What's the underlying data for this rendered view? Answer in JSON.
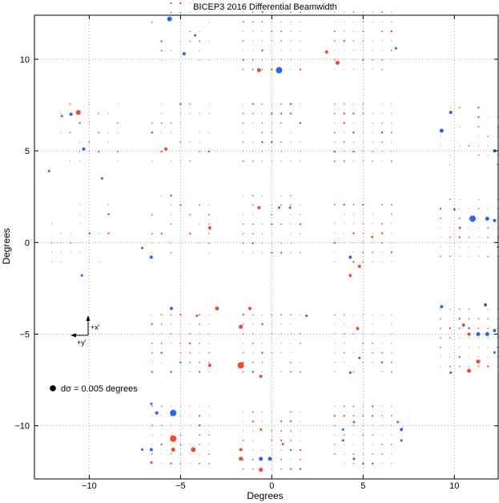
{
  "chart_data": {
    "type": "scatter",
    "title": "BICEP3 2016 Differential Beamwidth",
    "xlabel": "Degrees",
    "ylabel": "Degrees",
    "xlim": [
      -13,
      12.4
    ],
    "ylim": [
      -12.9,
      12.4
    ],
    "xticks": [
      -10,
      -5,
      0,
      5,
      10
    ],
    "yticks": [
      -10,
      -5,
      0,
      5,
      10
    ],
    "grid": true,
    "colors": {
      "positive": "#f04a2a",
      "negative": "#2a64f0"
    },
    "scale": {
      "marker_value": 0.005,
      "text": "dσ = 0.005 degrees"
    },
    "orientation": {
      "x_label": "+x'",
      "y_label": "+y'"
    },
    "tile_grid": {
      "spacing": 0.52,
      "n": 7
    },
    "tiles": [
      {
        "cx": -5.0,
        "cy": 11.5,
        "vis": "partial"
      },
      {
        "cx": 0.0,
        "cy": 11.0,
        "vis": "full"
      },
      {
        "cx": 5.0,
        "cy": 11.0,
        "vis": "full"
      },
      {
        "cx": -10.0,
        "cy": 6.0,
        "vis": "partial"
      },
      {
        "cx": -5.0,
        "cy": 6.0,
        "vis": "partial"
      },
      {
        "cx": 0.0,
        "cy": 6.0,
        "vis": "full"
      },
      {
        "cx": 5.0,
        "cy": 6.0,
        "vis": "full"
      },
      {
        "cx": 10.8,
        "cy": 5.8,
        "vis": "partial"
      },
      {
        "cx": -10.5,
        "cy": 0.5,
        "vis": "partial"
      },
      {
        "cx": -5.0,
        "cy": 1.0,
        "vis": "partial"
      },
      {
        "cx": 0.0,
        "cy": 1.0,
        "vis": "full"
      },
      {
        "cx": 5.0,
        "cy": 0.5,
        "vis": "full"
      },
      {
        "cx": 10.8,
        "cy": 0.8,
        "vis": "full"
      },
      {
        "cx": -5.0,
        "cy": -5.5,
        "vis": "full"
      },
      {
        "cx": 0.0,
        "cy": -5.5,
        "vis": "full"
      },
      {
        "cx": 5.0,
        "cy": -5.5,
        "vis": "full"
      },
      {
        "cx": 10.8,
        "cy": -5.2,
        "vis": "full"
      },
      {
        "cx": -5.0,
        "cy": -10.5,
        "vis": "full"
      },
      {
        "cx": 0.0,
        "cy": -10.8,
        "vis": "full"
      },
      {
        "cx": 5.0,
        "cy": -10.5,
        "vis": "full"
      }
    ],
    "highlights": [
      {
        "x": -5.6,
        "y": 12.2,
        "s": "neg",
        "r": 3.0
      },
      {
        "x": -4.8,
        "y": 10.3,
        "s": "neg",
        "r": 2.0
      },
      {
        "x": -4.2,
        "y": 11.3,
        "s": "neg",
        "r": 1.5
      },
      {
        "x": 0.4,
        "y": 9.4,
        "s": "neg",
        "r": 4.0
      },
      {
        "x": -0.7,
        "y": 9.4,
        "s": "pos",
        "r": 2.5
      },
      {
        "x": 3.6,
        "y": 9.8,
        "s": "pos",
        "r": 2.5
      },
      {
        "x": 3.0,
        "y": 10.4,
        "s": "pos",
        "r": 2.0
      },
      {
        "x": 6.8,
        "y": 10.6,
        "s": "neg",
        "r": 1.5
      },
      {
        "x": -10.6,
        "y": 7.1,
        "s": "pos",
        "r": 3.0
      },
      {
        "x": -11.0,
        "y": 7.0,
        "s": "neg",
        "r": 2.0
      },
      {
        "x": -11.5,
        "y": 6.9,
        "s": "pos",
        "r": 1.5
      },
      {
        "x": -10.3,
        "y": 5.1,
        "s": "neg",
        "r": 2.0
      },
      {
        "x": -12.2,
        "y": 3.9,
        "s": "neg",
        "r": 1.5
      },
      {
        "x": -9.3,
        "y": 3.5,
        "s": "neg",
        "r": 1.5
      },
      {
        "x": -5.8,
        "y": 5.1,
        "s": "pos",
        "r": 2.0
      },
      {
        "x": 9.8,
        "y": 7.1,
        "s": "neg",
        "r": 2.0
      },
      {
        "x": 9.3,
        "y": 6.1,
        "s": "neg",
        "r": 2.5
      },
      {
        "x": 12.2,
        "y": 5.0,
        "s": "neg",
        "r": 2.0
      },
      {
        "x": 11.0,
        "y": 1.3,
        "s": "neg",
        "r": 4.0
      },
      {
        "x": 11.8,
        "y": 1.3,
        "s": "neg",
        "r": 2.5
      },
      {
        "x": 12.2,
        "y": 1.2,
        "s": "neg",
        "r": 2.0
      },
      {
        "x": 10.0,
        "y": 1.8,
        "s": "neg",
        "r": 1.5
      },
      {
        "x": 10.3,
        "y": 0.8,
        "s": "pos",
        "r": 1.5
      },
      {
        "x": -6.6,
        "y": -0.8,
        "s": "neg",
        "r": 2.0
      },
      {
        "x": -7.1,
        "y": -0.3,
        "s": "neg",
        "r": 1.5
      },
      {
        "x": -3.4,
        "y": 0.8,
        "s": "pos",
        "r": 2.0
      },
      {
        "x": -0.7,
        "y": 1.9,
        "s": "pos",
        "r": 2.0
      },
      {
        "x": 0.4,
        "y": 1.9,
        "s": "neg",
        "r": 1.5
      },
      {
        "x": 1.0,
        "y": 1.9,
        "s": "neg",
        "r": 1.5
      },
      {
        "x": -10.4,
        "y": -1.8,
        "s": "neg",
        "r": 1.5
      },
      {
        "x": 4.3,
        "y": -0.8,
        "s": "neg",
        "r": 2.0
      },
      {
        "x": 4.3,
        "y": -1.8,
        "s": "pos",
        "r": 2.0
      },
      {
        "x": 4.8,
        "y": -1.3,
        "s": "pos",
        "r": 2.0
      },
      {
        "x": 5.5,
        "y": 0.3,
        "s": "pos",
        "r": 1.5
      },
      {
        "x": -4.1,
        "y": -4.0,
        "s": "pos",
        "r": 1.5
      },
      {
        "x": -3.0,
        "y": -3.6,
        "s": "pos",
        "r": 2.5
      },
      {
        "x": -3.4,
        "y": -6.7,
        "s": "pos",
        "r": 2.0
      },
      {
        "x": -5.5,
        "y": -3.6,
        "s": "neg",
        "r": 2.0
      },
      {
        "x": -1.7,
        "y": -4.6,
        "s": "pos",
        "r": 2.5
      },
      {
        "x": -1.7,
        "y": -6.7,
        "s": "pos",
        "r": 4.0
      },
      {
        "x": -1.2,
        "y": -3.6,
        "s": "pos",
        "r": 2.0
      },
      {
        "x": -0.6,
        "y": -7.3,
        "s": "pos",
        "r": 2.0
      },
      {
        "x": 1.9,
        "y": -4.0,
        "s": "neg",
        "r": 1.5
      },
      {
        "x": 4.7,
        "y": -4.7,
        "s": "pos",
        "r": 2.0
      },
      {
        "x": 4.8,
        "y": -6.3,
        "s": "neg",
        "r": 1.5
      },
      {
        "x": 4.3,
        "y": -7.1,
        "s": "neg",
        "r": 1.5
      },
      {
        "x": 9.3,
        "y": -3.5,
        "s": "neg",
        "r": 2.0
      },
      {
        "x": 11.7,
        "y": -3.4,
        "s": "neg",
        "r": 2.0
      },
      {
        "x": 10.5,
        "y": -4.5,
        "s": "pos",
        "r": 2.0
      },
      {
        "x": 11.3,
        "y": -5.0,
        "s": "neg",
        "r": 2.5
      },
      {
        "x": 11.8,
        "y": -5.0,
        "s": "neg",
        "r": 2.5
      },
      {
        "x": 12.2,
        "y": -4.8,
        "s": "neg",
        "r": 2.0
      },
      {
        "x": 10.8,
        "y": -5.0,
        "s": "pos",
        "r": 2.0
      },
      {
        "x": 11.3,
        "y": -6.5,
        "s": "pos",
        "r": 2.5
      },
      {
        "x": 10.8,
        "y": -7.0,
        "s": "pos",
        "r": 2.5
      },
      {
        "x": 9.8,
        "y": -7.1,
        "s": "neg",
        "r": 1.5
      },
      {
        "x": 12.2,
        "y": -6.0,
        "s": "neg",
        "r": 1.5
      },
      {
        "x": -5.4,
        "y": -9.3,
        "s": "neg",
        "r": 4.0
      },
      {
        "x": -5.4,
        "y": -10.7,
        "s": "pos",
        "r": 4.0
      },
      {
        "x": -4.3,
        "y": -11.3,
        "s": "pos",
        "r": 3.0
      },
      {
        "x": -5.4,
        "y": -11.3,
        "s": "pos",
        "r": 2.5
      },
      {
        "x": -6.3,
        "y": -9.3,
        "s": "neg",
        "r": 2.0
      },
      {
        "x": -6.6,
        "y": -8.8,
        "s": "neg",
        "r": 1.5
      },
      {
        "x": -6.6,
        "y": -11.3,
        "s": "neg",
        "r": 2.0
      },
      {
        "x": -7.1,
        "y": -11.3,
        "s": "neg",
        "r": 1.5
      },
      {
        "x": -6.6,
        "y": -12.0,
        "s": "pos",
        "r": 1.5
      },
      {
        "x": -1.7,
        "y": -11.3,
        "s": "pos",
        "r": 2.0
      },
      {
        "x": -1.7,
        "y": -11.8,
        "s": "pos",
        "r": 2.5
      },
      {
        "x": -0.6,
        "y": -11.8,
        "s": "neg",
        "r": 2.5
      },
      {
        "x": -0.1,
        "y": -11.8,
        "s": "neg",
        "r": 2.5
      },
      {
        "x": -0.6,
        "y": -12.4,
        "s": "pos",
        "r": 2.5
      },
      {
        "x": -0.6,
        "y": -10.2,
        "s": "pos",
        "r": 1.5
      },
      {
        "x": 0.6,
        "y": -11.0,
        "s": "pos",
        "r": 1.5
      },
      {
        "x": 3.9,
        "y": -10.2,
        "s": "neg",
        "r": 1.5
      },
      {
        "x": 3.9,
        "y": -10.8,
        "s": "neg",
        "r": 1.5
      },
      {
        "x": 4.5,
        "y": -9.8,
        "s": "pos",
        "r": 1.5
      },
      {
        "x": 6.9,
        "y": -9.8,
        "s": "pos",
        "r": 1.5
      },
      {
        "x": 7.1,
        "y": -10.2,
        "s": "neg",
        "r": 2.0
      },
      {
        "x": 7.1,
        "y": -10.8,
        "s": "neg",
        "r": 1.5
      },
      {
        "x": 4.5,
        "y": -11.8,
        "s": "neg",
        "r": 1.5
      }
    ]
  }
}
